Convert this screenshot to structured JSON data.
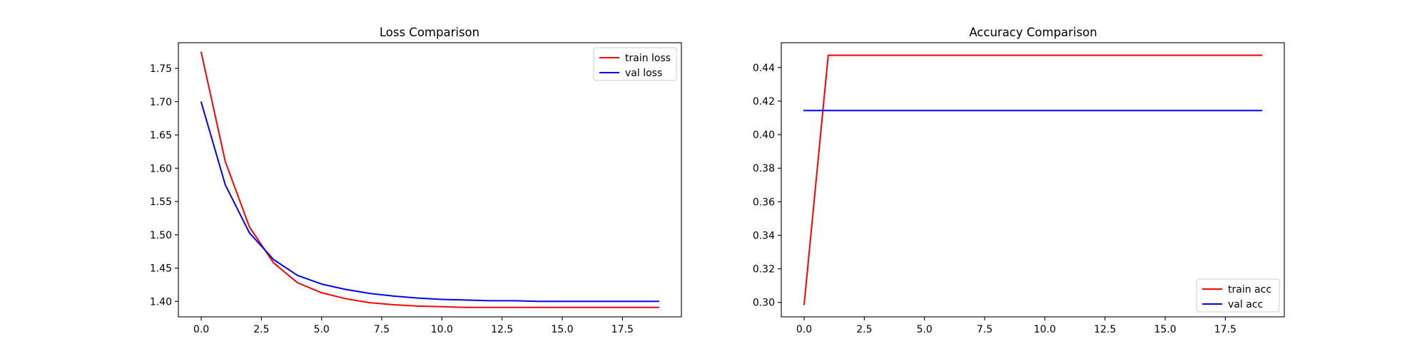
{
  "chart_data": [
    {
      "type": "line",
      "title": "Loss Comparison",
      "xlabel": "",
      "ylabel": "",
      "xlim": [
        -0.95,
        19.95
      ],
      "ylim": [
        1.3768,
        1.7885
      ],
      "xticks": [
        0.0,
        2.5,
        5.0,
        7.5,
        10.0,
        12.5,
        15.0,
        17.5
      ],
      "xtick_labels": [
        "0.0",
        "2.5",
        "5.0",
        "7.5",
        "10.0",
        "12.5",
        "15.0",
        "17.5"
      ],
      "yticks": [
        1.4,
        1.45,
        1.5,
        1.55,
        1.6,
        1.65,
        1.7,
        1.75
      ],
      "ytick_labels": [
        "1.40",
        "1.45",
        "1.50",
        "1.55",
        "1.60",
        "1.65",
        "1.70",
        "1.75"
      ],
      "grid": false,
      "legend_position": "top-right",
      "x": [
        0,
        1,
        2,
        3,
        4,
        5,
        6,
        7,
        8,
        9,
        10,
        11,
        12,
        13,
        14,
        15,
        16,
        17,
        18,
        19
      ],
      "series": [
        {
          "name": "train loss",
          "color": "#ff0000",
          "values": [
            1.774,
            1.61,
            1.512,
            1.458,
            1.428,
            1.413,
            1.404,
            1.398,
            1.395,
            1.393,
            1.392,
            1.391,
            1.391,
            1.391,
            1.391,
            1.391,
            1.391,
            1.391,
            1.391,
            1.391
          ]
        },
        {
          "name": "val loss",
          "color": "#0000ff",
          "values": [
            1.699,
            1.575,
            1.503,
            1.463,
            1.439,
            1.426,
            1.418,
            1.412,
            1.408,
            1.405,
            1.403,
            1.402,
            1.401,
            1.401,
            1.4,
            1.4,
            1.4,
            1.4,
            1.4,
            1.4
          ]
        }
      ]
    },
    {
      "type": "line",
      "title": "Accuracy Comparison",
      "xlabel": "",
      "ylabel": "",
      "xlim": [
        -0.95,
        19.95
      ],
      "ylim": [
        0.2914,
        0.4548
      ],
      "xticks": [
        0.0,
        2.5,
        5.0,
        7.5,
        10.0,
        12.5,
        15.0,
        17.5
      ],
      "xtick_labels": [
        "0.0",
        "2.5",
        "5.0",
        "7.5",
        "10.0",
        "12.5",
        "15.0",
        "17.5"
      ],
      "yticks": [
        0.3,
        0.32,
        0.34,
        0.36,
        0.38,
        0.4,
        0.42,
        0.44
      ],
      "ytick_labels": [
        "0.30",
        "0.32",
        "0.34",
        "0.36",
        "0.38",
        "0.40",
        "0.42",
        "0.44"
      ],
      "grid": false,
      "legend_position": "bottom-right",
      "x": [
        0,
        1,
        2,
        3,
        4,
        5,
        6,
        7,
        8,
        9,
        10,
        11,
        12,
        13,
        14,
        15,
        16,
        17,
        18,
        19
      ],
      "series": [
        {
          "name": "train acc",
          "color": "#ff0000",
          "values": [
            0.2988,
            0.4473,
            0.4473,
            0.4473,
            0.4473,
            0.4473,
            0.4473,
            0.4473,
            0.4473,
            0.4473,
            0.4473,
            0.4473,
            0.4473,
            0.4473,
            0.4473,
            0.4473,
            0.4473,
            0.4473,
            0.4473,
            0.4473
          ]
        },
        {
          "name": "val acc",
          "color": "#0000ff",
          "values": [
            0.4144,
            0.4144,
            0.4144,
            0.4144,
            0.4144,
            0.4144,
            0.4144,
            0.4144,
            0.4144,
            0.4144,
            0.4144,
            0.4144,
            0.4144,
            0.4144,
            0.4144,
            0.4144,
            0.4144,
            0.4144,
            0.4144,
            0.4144
          ]
        }
      ]
    }
  ]
}
